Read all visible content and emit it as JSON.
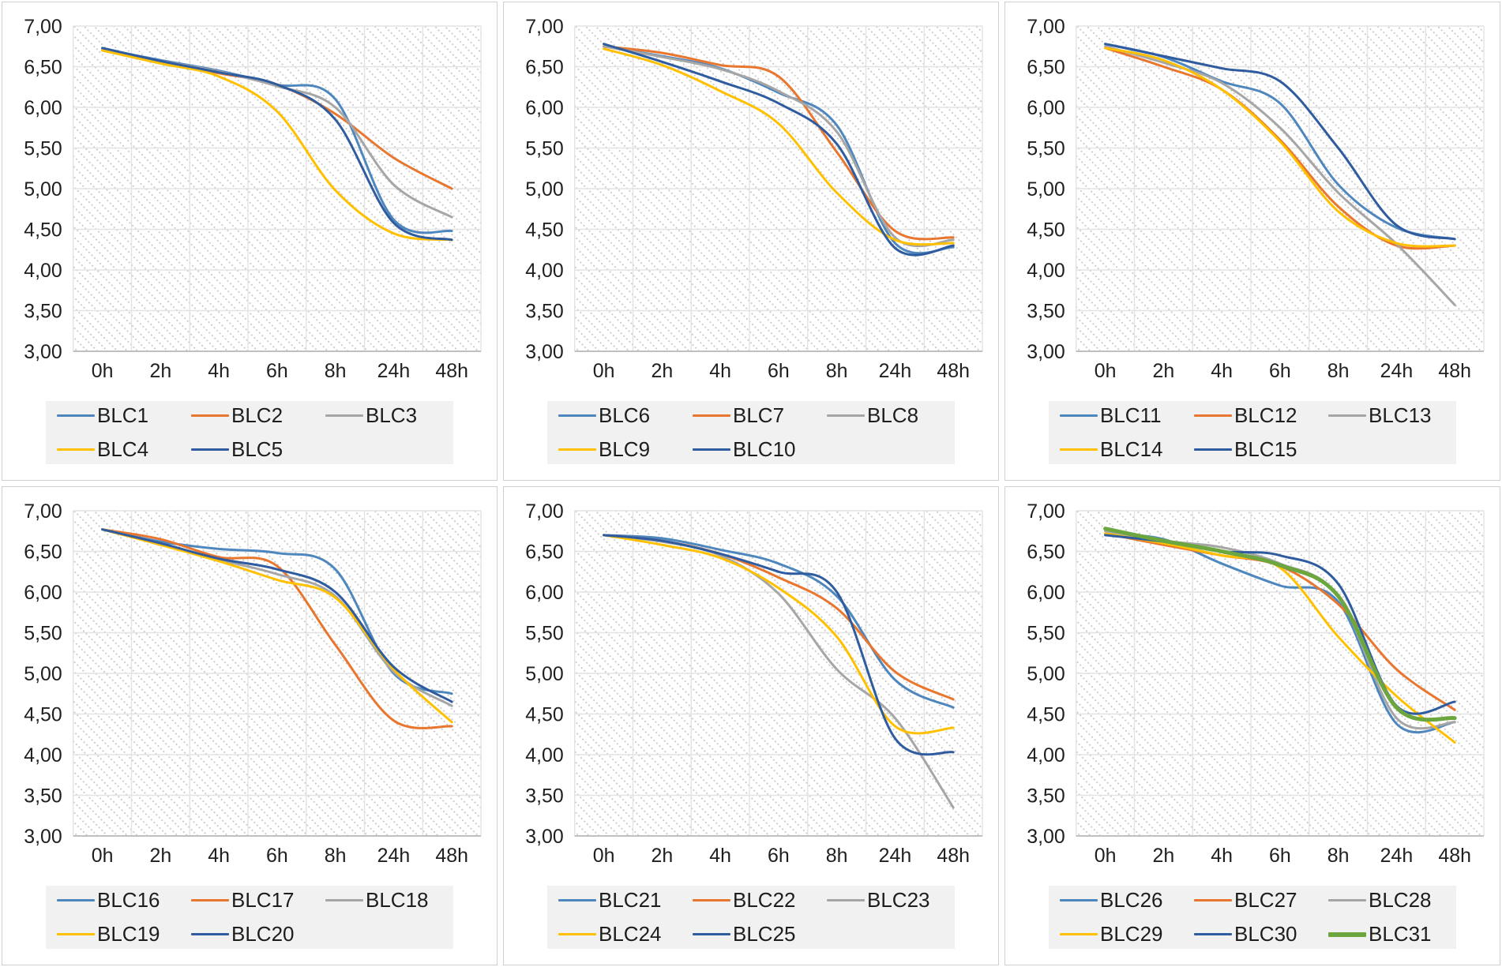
{
  "chart_data": {
    "type": "line",
    "layout": "grid-2rows-3cols",
    "description": "Six smoothed line charts of pH decline over incubation time for strains BLC1-BLC31",
    "categories": [
      "0h",
      "2h",
      "4h",
      "6h",
      "8h",
      "24h",
      "48h"
    ],
    "y_axis": {
      "min": 3.0,
      "max": 7.0,
      "step": 0.5,
      "tick_labels": [
        "7,00",
        "6,50",
        "6,00",
        "5,50",
        "5,00",
        "4,50",
        "4,00",
        "3,50",
        "3,00"
      ]
    },
    "grid": true,
    "plot_background": "diagonal-dot-hatch",
    "legend_position": "bottom",
    "palette": {
      "blue": "#4E87BE",
      "orange": "#E9762E",
      "gray": "#A6A6A6",
      "yellow": "#FFC000",
      "darkblue": "#2F5C9F",
      "green": "#6CA63F"
    },
    "grid_color": "#e3e3e3",
    "axis_color": "#c0c0c0",
    "hatch_dot_color": "#c3c3c3",
    "legend_bg": "#f1f1f1",
    "charts": [
      {
        "position": "top-left",
        "series": [
          {
            "name": "BLC1",
            "color_key": "blue",
            "width": 3,
            "values": [
              6.72,
              6.58,
              6.45,
              6.28,
              6.1,
              4.62,
              4.48
            ]
          },
          {
            "name": "BLC2",
            "color_key": "orange",
            "width": 3,
            "values": [
              6.7,
              6.56,
              6.42,
              6.28,
              5.92,
              5.38,
              5.0
            ]
          },
          {
            "name": "BLC3",
            "color_key": "gray",
            "width": 3,
            "values": [
              6.72,
              6.57,
              6.44,
              6.26,
              6.0,
              5.05,
              4.65
            ]
          },
          {
            "name": "BLC4",
            "color_key": "yellow",
            "width": 3,
            "values": [
              6.7,
              6.54,
              6.38,
              5.95,
              4.98,
              4.45,
              4.37
            ]
          },
          {
            "name": "BLC5",
            "color_key": "darkblue",
            "width": 3,
            "values": [
              6.73,
              6.57,
              6.43,
              6.28,
              5.85,
              4.58,
              4.37
            ]
          }
        ]
      },
      {
        "position": "top-middle",
        "series": [
          {
            "name": "BLC6",
            "color_key": "blue",
            "width": 3,
            "values": [
              6.75,
              6.63,
              6.48,
              6.18,
              5.78,
              4.33,
              4.28
            ]
          },
          {
            "name": "BLC7",
            "color_key": "orange",
            "width": 3,
            "values": [
              6.75,
              6.67,
              6.52,
              6.38,
              5.45,
              4.48,
              4.4
            ]
          },
          {
            "name": "BLC8",
            "color_key": "gray",
            "width": 3,
            "values": [
              6.75,
              6.62,
              6.47,
              6.2,
              5.7,
              4.4,
              4.37
            ]
          },
          {
            "name": "BLC9",
            "color_key": "yellow",
            "width": 3,
            "values": [
              6.72,
              6.52,
              6.2,
              5.8,
              4.95,
              4.37,
              4.33
            ]
          },
          {
            "name": "BLC10",
            "color_key": "darkblue",
            "width": 3,
            "values": [
              6.78,
              6.56,
              6.32,
              6.05,
              5.55,
              4.27,
              4.3
            ]
          }
        ]
      },
      {
        "position": "top-right",
        "series": [
          {
            "name": "BLC11",
            "color_key": "blue",
            "width": 3,
            "values": [
              6.78,
              6.62,
              6.32,
              6.05,
              5.05,
              4.52,
              4.38
            ]
          },
          {
            "name": "BLC12",
            "color_key": "orange",
            "width": 3,
            "values": [
              6.73,
              6.5,
              6.22,
              5.6,
              4.78,
              4.3,
              4.3
            ]
          },
          {
            "name": "BLC13",
            "color_key": "gray",
            "width": 3,
            "values": [
              6.75,
              6.55,
              6.3,
              5.75,
              4.95,
              4.32,
              3.57
            ]
          },
          {
            "name": "BLC14",
            "color_key": "yellow",
            "width": 3,
            "values": [
              6.73,
              6.58,
              6.22,
              5.58,
              4.72,
              4.33,
              4.3
            ]
          },
          {
            "name": "BLC15",
            "color_key": "darkblue",
            "width": 3,
            "values": [
              6.78,
              6.63,
              6.48,
              6.32,
              5.5,
              4.55,
              4.38
            ]
          }
        ]
      },
      {
        "position": "bottom-left",
        "series": [
          {
            "name": "BLC16",
            "color_key": "blue",
            "width": 3,
            "values": [
              6.77,
              6.62,
              6.53,
              6.48,
              6.28,
              5.0,
              4.75
            ]
          },
          {
            "name": "BLC17",
            "color_key": "orange",
            "width": 3,
            "values": [
              6.77,
              6.65,
              6.43,
              6.32,
              5.35,
              4.42,
              4.35
            ]
          },
          {
            "name": "BLC18",
            "color_key": "gray",
            "width": 3,
            "values": [
              6.77,
              6.6,
              6.4,
              6.22,
              5.95,
              5.02,
              4.6
            ]
          },
          {
            "name": "BLC19",
            "color_key": "yellow",
            "width": 3,
            "values": [
              6.77,
              6.58,
              6.38,
              6.15,
              5.93,
              5.05,
              4.4
            ]
          },
          {
            "name": "BLC20",
            "color_key": "darkblue",
            "width": 3,
            "values": [
              6.77,
              6.6,
              6.41,
              6.28,
              6.0,
              5.08,
              4.65
            ]
          }
        ]
      },
      {
        "position": "bottom-middle",
        "series": [
          {
            "name": "BLC21",
            "color_key": "blue",
            "width": 3,
            "values": [
              6.7,
              6.66,
              6.52,
              6.35,
              5.95,
              4.92,
              4.58
            ]
          },
          {
            "name": "BLC22",
            "color_key": "orange",
            "width": 3,
            "values": [
              6.7,
              6.63,
              6.47,
              6.18,
              5.8,
              5.02,
              4.68
            ]
          },
          {
            "name": "BLC23",
            "color_key": "gray",
            "width": 3,
            "values": [
              6.7,
              6.62,
              6.45,
              5.98,
              5.05,
              4.45,
              3.35
            ]
          },
          {
            "name": "BLC24",
            "color_key": "yellow",
            "width": 3,
            "values": [
              6.7,
              6.58,
              6.42,
              6.05,
              5.45,
              4.35,
              4.33
            ]
          },
          {
            "name": "BLC25",
            "color_key": "darkblue",
            "width": 3,
            "values": [
              6.7,
              6.63,
              6.47,
              6.25,
              6.0,
              4.2,
              4.03
            ]
          }
        ]
      },
      {
        "position": "bottom-right",
        "series": [
          {
            "name": "BLC26",
            "color_key": "blue",
            "width": 3,
            "values": [
              6.72,
              6.65,
              6.35,
              6.08,
              5.88,
              4.38,
              4.4
            ]
          },
          {
            "name": "BLC27",
            "color_key": "orange",
            "width": 3,
            "values": [
              6.72,
              6.58,
              6.45,
              6.32,
              5.85,
              5.05,
              4.55
            ]
          },
          {
            "name": "BLC28",
            "color_key": "gray",
            "width": 3,
            "values": [
              6.75,
              6.63,
              6.55,
              6.35,
              5.95,
              4.45,
              4.4
            ]
          },
          {
            "name": "BLC29",
            "color_key": "yellow",
            "width": 3,
            "values": [
              6.72,
              6.6,
              6.45,
              6.3,
              5.45,
              4.72,
              4.15
            ]
          },
          {
            "name": "BLC30",
            "color_key": "darkblue",
            "width": 3,
            "values": [
              6.7,
              6.62,
              6.5,
              6.45,
              6.1,
              4.6,
              4.65
            ]
          },
          {
            "name": "BLC31",
            "color_key": "green",
            "width": 5,
            "values": [
              6.78,
              6.63,
              6.5,
              6.33,
              5.95,
              4.58,
              4.45
            ]
          }
        ]
      }
    ]
  }
}
